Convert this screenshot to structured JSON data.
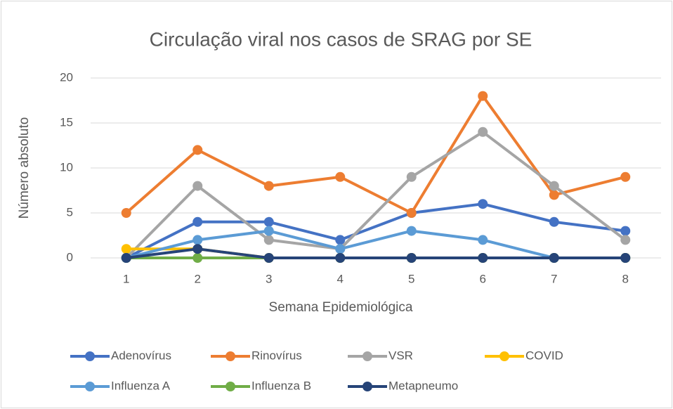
{
  "chart_data": {
    "type": "line",
    "title": "Circulação viral nos casos de SRAG por SE",
    "x_label": "Semana Epidemiológica",
    "y_label": "Número absoluto",
    "categories": [
      "1",
      "2",
      "3",
      "4",
      "5",
      "6",
      "7",
      "8"
    ],
    "series": [
      {
        "name": "Adenovírus",
        "color": "#4472c4",
        "values": [
          0,
          4,
          4,
          2,
          5,
          6,
          4,
          3
        ]
      },
      {
        "name": "Rinovírus",
        "color": "#ed7d31",
        "values": [
          5,
          12,
          8,
          9,
          5,
          18,
          7,
          9
        ]
      },
      {
        "name": "VSR",
        "color": "#a5a5a5",
        "values": [
          0,
          8,
          2,
          1,
          9,
          14,
          8,
          2
        ]
      },
      {
        "name": "COVID",
        "color": "#ffc000",
        "values": [
          1,
          1,
          0,
          0,
          0,
          0,
          0,
          0
        ]
      },
      {
        "name": "Influenza A",
        "color": "#5b9bd5",
        "values": [
          0,
          2,
          3,
          1,
          3,
          2,
          0,
          0
        ]
      },
      {
        "name": "Influenza B",
        "color": "#70ad47",
        "values": [
          0,
          0,
          0,
          0,
          0,
          0,
          0,
          0
        ]
      },
      {
        "name": "Metapneumo",
        "color": "#264478",
        "values": [
          0,
          1,
          0,
          0,
          0,
          0,
          0,
          0
        ]
      }
    ],
    "ylim": [
      0,
      20
    ],
    "yticks": [
      0,
      5,
      10,
      15,
      20
    ],
    "grid": true,
    "legend": "bottom"
  }
}
